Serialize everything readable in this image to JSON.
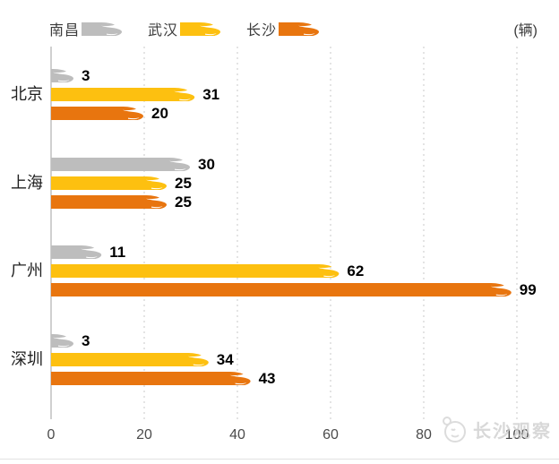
{
  "chart_data": {
    "type": "bar",
    "orientation": "horizontal",
    "unit_label": "(辆)",
    "categories": [
      "北京",
      "上海",
      "广州",
      "深圳"
    ],
    "series": [
      {
        "name": "南昌",
        "color": "#BDBDBD",
        "values": [
          3,
          30,
          11,
          3
        ]
      },
      {
        "name": "武汉",
        "color": "#FDC010",
        "values": [
          31,
          25,
          62,
          34
        ]
      },
      {
        "name": "长沙",
        "color": "#E8750F",
        "values": [
          20,
          25,
          99,
          43
        ]
      }
    ],
    "xlim": [
      0,
      100
    ],
    "xticks": [
      0,
      20,
      40,
      60,
      80,
      100
    ],
    "grid": "vertical-dashed",
    "legend_position": "top",
    "bar_style": "train-shaped"
  },
  "watermark": {
    "text": "长沙观察",
    "icon": "face-logo"
  },
  "colors": {
    "axis": "#A0A0A0",
    "gridline": "#C8C8C8",
    "tick_label": "#4B4B4B",
    "category_label": "#1F1F1F",
    "value_label": "#000000",
    "separator": "#E3E3E3",
    "watermark": "#D2D2D2"
  }
}
